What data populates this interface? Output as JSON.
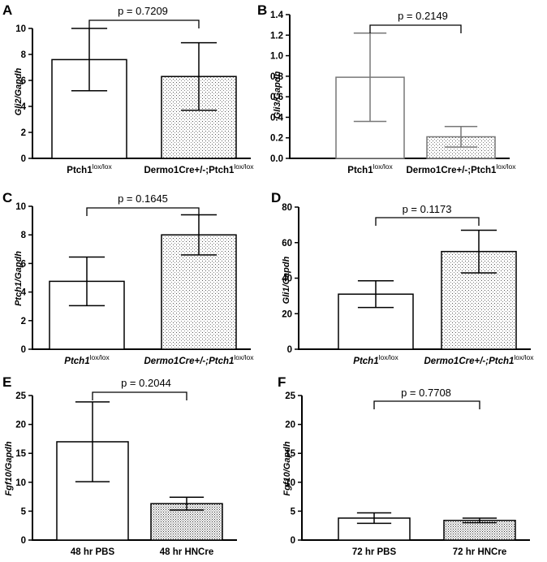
{
  "chart_data": [
    {
      "type": "bar",
      "panel_letter": "A",
      "ylabel": "Gli2/Gapdh",
      "ylim": [
        0,
        10
      ],
      "yticks": [
        0,
        2,
        4,
        6,
        8,
        10
      ],
      "categories": [
        {
          "main": "Ptch1",
          "sup": "lox/lox",
          "italic": false
        },
        {
          "main": "Dermo1Cre+/-;Ptch1",
          "sup": "lox/lox",
          "italic": false
        }
      ],
      "values": [
        7.6,
        6.3
      ],
      "errors": [
        2.4,
        2.6
      ],
      "pattern": [
        "none",
        "dots"
      ],
      "bar_color": "#000000",
      "significance": {
        "text": "p = 0.7209",
        "between": [
          0,
          1
        ]
      }
    },
    {
      "type": "bar",
      "panel_letter": "B",
      "ylabel": "Gli3/Gapdh",
      "ylim": [
        0,
        1.4
      ],
      "yticks": [
        "0.0",
        "0.2",
        "0.4",
        "0.6",
        "0.8",
        "1.0",
        "1.2",
        "1.4"
      ],
      "categories": [
        {
          "main": "Ptch1",
          "sup": "lox/lox",
          "italic": false
        },
        {
          "main": "Dermo1Cre+/-;Ptch1",
          "sup": "lox/lox",
          "italic": false
        }
      ],
      "values": [
        0.79,
        0.21
      ],
      "errors": [
        0.43,
        0.1
      ],
      "pattern": [
        "none",
        "dots"
      ],
      "bar_color": "#777777",
      "significance": {
        "text": "p = 0.2149",
        "between": [
          0,
          1
        ]
      }
    },
    {
      "type": "bar",
      "panel_letter": "C",
      "ylabel": "Ptch1/Gapdh",
      "ylim": [
        0,
        10
      ],
      "yticks": [
        0,
        2,
        4,
        6,
        8,
        10
      ],
      "categories": [
        {
          "main": "Ptch1",
          "sup": "lox/lox",
          "italic": true
        },
        {
          "main": "Dermo1Cre+/-;Ptch1",
          "sup": "lox/lox",
          "italic": true
        }
      ],
      "values": [
        4.75,
        8.0
      ],
      "errors": [
        1.7,
        1.4
      ],
      "pattern": [
        "none",
        "dots"
      ],
      "bar_color": "#000000",
      "significance": {
        "text": "p = 0.1645",
        "between": [
          0,
          1
        ]
      }
    },
    {
      "type": "bar",
      "panel_letter": "D",
      "ylabel": "Gli1/Gapdh",
      "ylim": [
        0,
        80
      ],
      "yticks": [
        0,
        20,
        40,
        60,
        80
      ],
      "categories": [
        {
          "main": "Ptch1",
          "sup": "lox/lox",
          "italic": true
        },
        {
          "main": "Dermo1Cre+/-;Ptch1",
          "sup": "lox/lox",
          "italic": true
        }
      ],
      "values": [
        31,
        55
      ],
      "errors": [
        7.5,
        12
      ],
      "pattern": [
        "none",
        "dots"
      ],
      "bar_color": "#000000",
      "significance": {
        "text": "p = 0.1173",
        "between": [
          0,
          1
        ]
      }
    },
    {
      "type": "bar",
      "panel_letter": "E",
      "ylabel": "Fgf10/Gapdh",
      "ylim": [
        0,
        25
      ],
      "yticks": [
        0,
        5,
        10,
        15,
        20,
        25
      ],
      "categories": [
        {
          "main": "48 hr PBS",
          "sup": "",
          "italic": false
        },
        {
          "main": "48 hr HNCre",
          "sup": "",
          "italic": false
        }
      ],
      "values": [
        17,
        6.3
      ],
      "errors": [
        6.9,
        1.1
      ],
      "pattern": [
        "none",
        "dense"
      ],
      "bar_color": "#000000",
      "significance": {
        "text": "p = 0.2044",
        "between": [
          0,
          1
        ]
      }
    },
    {
      "type": "bar",
      "panel_letter": "F",
      "ylabel": "Fgf10/Gapdh",
      "ylim": [
        0,
        25
      ],
      "yticks": [
        0,
        5,
        10,
        15,
        20,
        25
      ],
      "categories": [
        {
          "main": "72 hr PBS",
          "sup": "",
          "italic": false
        },
        {
          "main": "72 hr HNCre",
          "sup": "",
          "italic": false
        }
      ],
      "values": [
        3.8,
        3.4
      ],
      "errors": [
        0.9,
        0.4
      ],
      "pattern": [
        "none",
        "dense"
      ],
      "bar_color": "#000000",
      "significance": {
        "text": "p = 0.7708",
        "between": [
          0,
          1
        ]
      }
    }
  ]
}
